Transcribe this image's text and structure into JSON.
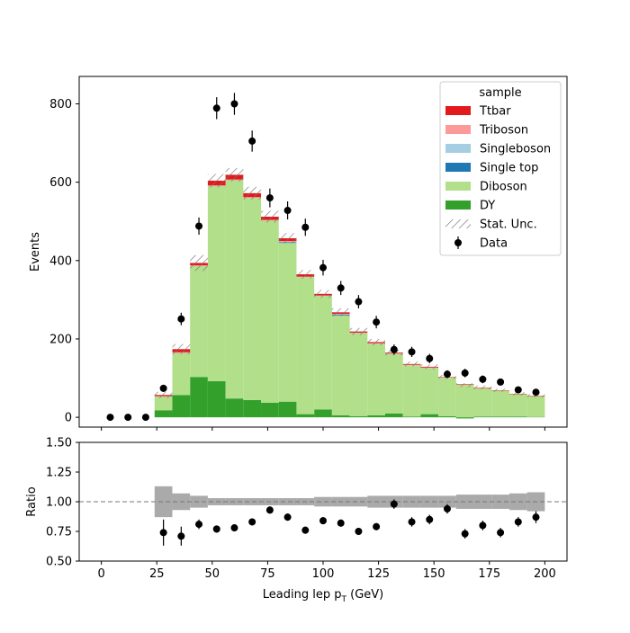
{
  "chart_data": {
    "type": "bar",
    "stacked": true,
    "xlabel": "Leading lep p",
    "xlabel_sub": "T",
    "xlabel_unit": " (GeV)",
    "bins": {
      "edges": [
        0,
        8,
        16,
        24,
        32,
        40,
        48,
        56,
        64,
        72,
        80,
        88,
        96,
        104,
        112,
        120,
        128,
        136,
        144,
        152,
        160,
        168,
        176,
        184,
        192,
        200
      ]
    },
    "main_panel": {
      "ylabel": "Events",
      "ylim": [
        -25,
        870
      ],
      "xlim": [
        -10,
        210
      ],
      "x_ticks": [
        0,
        25,
        50,
        75,
        100,
        125,
        150,
        175,
        200
      ],
      "x_tick_labels": [
        "0",
        "25",
        "50",
        "75",
        "100",
        "125",
        "150",
        "175",
        "200"
      ],
      "y_ticks": [
        0,
        200,
        400,
        600,
        800
      ],
      "y_tick_labels": [
        "0",
        "200",
        "400",
        "600",
        "800"
      ]
    },
    "series": [
      {
        "name": "DY",
        "color": "#33a02c",
        "values": [
          0,
          0,
          0,
          18,
          57,
          103,
          92,
          48,
          44,
          37,
          40,
          8,
          20,
          5,
          3,
          5,
          10,
          2,
          8,
          3,
          -3,
          2,
          2,
          2,
          1
        ]
      },
      {
        "name": "Diboson",
        "color": "#b2df8a",
        "values": [
          0,
          0,
          0,
          35,
          107,
          283,
          498,
          557,
          516,
          465,
          405,
          350,
          290,
          255,
          212,
          183,
          152,
          131,
          118,
          98,
          83,
          72,
          66,
          57,
          53
        ]
      },
      {
        "name": "Single top",
        "color": "#1f78b4",
        "values": [
          0,
          0,
          0,
          0,
          0,
          0,
          0,
          0,
          0,
          0,
          2,
          0,
          0,
          2,
          0,
          0,
          0,
          0,
          0,
          0,
          0,
          0,
          0,
          0,
          0
        ]
      },
      {
        "name": "Singleboson",
        "color": "#a6cee3",
        "values": [
          0,
          0,
          0,
          0,
          0,
          0,
          0,
          0,
          0,
          0,
          1,
          0,
          0,
          1,
          0,
          0,
          0,
          0,
          0,
          0,
          0,
          0,
          0,
          0,
          0
        ]
      },
      {
        "name": "Triboson",
        "color": "#fb9a99",
        "values": [
          0,
          0,
          0,
          1,
          2,
          2,
          2,
          2,
          2,
          2,
          2,
          1,
          1,
          1,
          1,
          1,
          1,
          1,
          1,
          1,
          1,
          1,
          0,
          0,
          0
        ]
      },
      {
        "name": "Ttbar",
        "color": "#e31a1c",
        "values": [
          0,
          0,
          0,
          3,
          8,
          6,
          12,
          12,
          10,
          8,
          7,
          6,
          4,
          4,
          3,
          3,
          2,
          2,
          2,
          1,
          1,
          1,
          1,
          1,
          1
        ]
      }
    ],
    "stat_unc": {
      "name": "Stat. Unc.",
      "values": [
        0,
        0,
        0,
        8,
        13,
        20,
        17,
        17,
        16,
        15,
        13,
        11,
        10,
        10,
        9,
        8,
        7,
        6,
        6,
        5,
        5,
        5,
        4,
        4,
        4
      ]
    },
    "data": {
      "name": "Data",
      "x": [
        4,
        12,
        20,
        28,
        36,
        44,
        52,
        60,
        68,
        76,
        84,
        92,
        100,
        108,
        116,
        124,
        132,
        140,
        148,
        156,
        164,
        172,
        180,
        188,
        196
      ],
      "y": [
        0,
        0,
        0,
        74,
        251,
        488,
        789,
        800,
        705,
        560,
        528,
        485,
        382,
        330,
        295,
        243,
        173,
        167,
        150,
        110,
        113,
        97,
        90,
        70,
        64
      ],
      "yerr": [
        0,
        0,
        0,
        9,
        16,
        22,
        28,
        28,
        27,
        24,
        23,
        22,
        20,
        18,
        17,
        16,
        13,
        13,
        12,
        10,
        11,
        10,
        9,
        8,
        8
      ]
    },
    "legend": {
      "title": "sample",
      "placement": "top-right",
      "entries": [
        "Ttbar",
        "Triboson",
        "Singleboson",
        "Single top",
        "Diboson",
        "DY",
        "Stat. Unc.",
        "Data"
      ]
    },
    "ratio_panel": {
      "ylabel": "Ratio",
      "ylim": [
        0.5,
        1.5
      ],
      "y_ticks": [
        0.5,
        0.75,
        1.0,
        1.25,
        1.5
      ],
      "y_tick_labels": [
        "0.50",
        "0.75",
        "1.00",
        "1.25",
        "1.50"
      ],
      "reference_line": 1.0,
      "unc_band": [
        0,
        0,
        0,
        0.13,
        0.07,
        0.05,
        0.03,
        0.03,
        0.03,
        0.03,
        0.03,
        0.03,
        0.04,
        0.04,
        0.04,
        0.05,
        0.05,
        0.05,
        0.05,
        0.05,
        0.06,
        0.06,
        0.06,
        0.07,
        0.08
      ],
      "points": {
        "x": [
          28,
          36,
          44,
          52,
          60,
          68,
          76,
          84,
          92,
          100,
          108,
          116,
          124,
          132,
          140,
          148,
          156,
          164,
          172,
          180,
          188,
          196
        ],
        "y": [
          0.74,
          0.71,
          0.81,
          0.77,
          0.78,
          0.83,
          0.93,
          0.87,
          0.76,
          0.84,
          0.82,
          0.75,
          0.79,
          0.98,
          0.83,
          0.85,
          0.94,
          0.73,
          0.8,
          0.74,
          0.83,
          0.87
        ],
        "yerr": [
          0.11,
          0.08,
          0.04,
          0.03,
          0.03,
          0.03,
          0.03,
          0.03,
          0.03,
          0.03,
          0.03,
          0.03,
          0.03,
          0.04,
          0.04,
          0.04,
          0.04,
          0.04,
          0.04,
          0.04,
          0.04,
          0.05
        ]
      }
    }
  }
}
